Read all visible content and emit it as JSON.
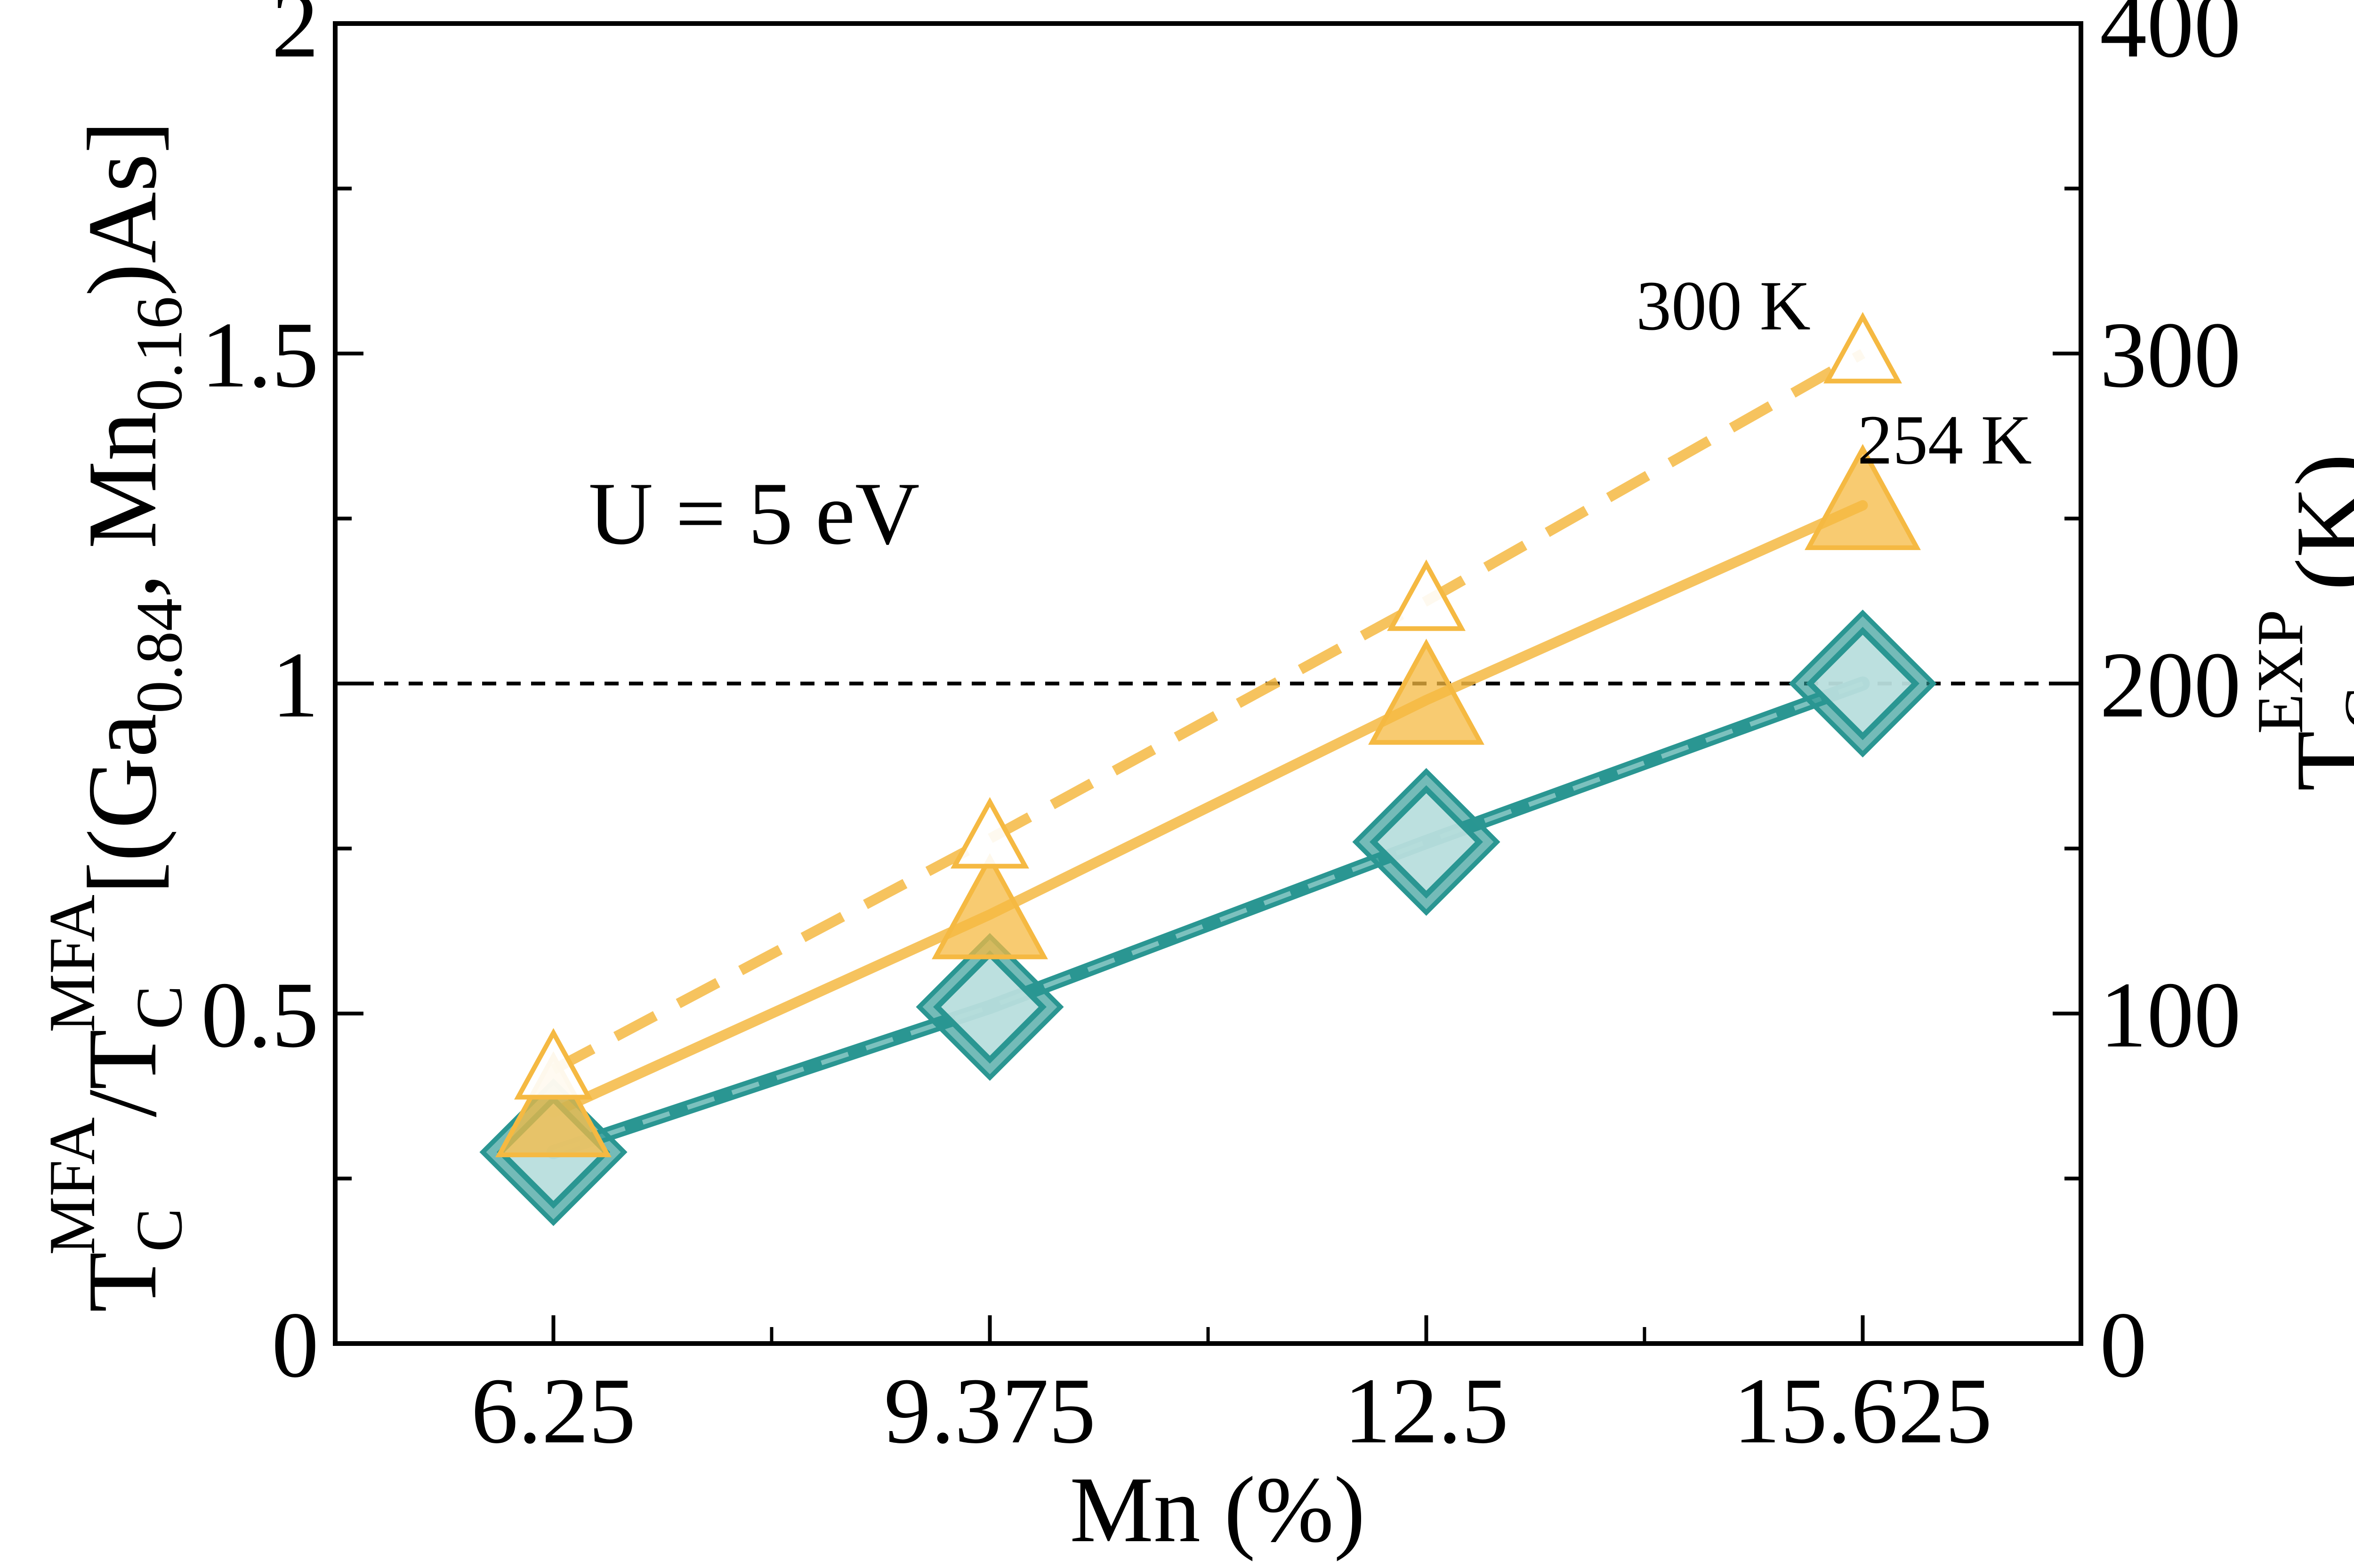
{
  "chart_data": {
    "type": "line",
    "x": [
      6.25,
      9.375,
      12.5,
      15.625
    ],
    "categories": [
      "6.25",
      "9.375",
      "12.5",
      "15.625"
    ],
    "xlim": [
      4.6875,
      17.1875
    ],
    "ylim": [
      0,
      2
    ],
    "y2lim": [
      0,
      400
    ],
    "yticks": [
      "0",
      "0.5",
      "1",
      "1.5",
      "2"
    ],
    "y2ticks": [
      "0",
      "100",
      "200",
      "300",
      "400"
    ],
    "xlabel": "Mn (%)",
    "ylabel": {
      "pre": "T",
      "sub1": "C",
      "sup1": "MFA",
      "mid": "/T",
      "sub2": "C",
      "sup2": "MFA",
      "b1": "[(Ga",
      "sub3": "0.84",
      "b2": ", Mn",
      "sub4": "0.16",
      "b3": ")As]"
    },
    "y2label": {
      "pre": "T",
      "sub": "C",
      "sup": "EXP",
      "post": "(K)"
    },
    "reference_line": {
      "y": 1,
      "style": "dashed"
    },
    "series": [
      {
        "axis": "left",
        "marker": "diamond",
        "line": "solid",
        "values": [
          0.29,
          0.51,
          0.76,
          1.0
        ],
        "color": "#2a9692"
      },
      {
        "axis": "right",
        "marker": "triangle-filled",
        "line": "solid",
        "values": [
          70,
          130,
          195,
          254
        ],
        "color": "#f5b942"
      },
      {
        "axis": "right",
        "marker": "triangle-open",
        "line": "dashed",
        "values": [
          83,
          153,
          225,
          300
        ],
        "color": "#f5b942"
      }
    ],
    "annotations": [
      {
        "text": "U = 5 eV"
      },
      {
        "text": "300 K"
      },
      {
        "text": "254 K"
      }
    ],
    "grid": false,
    "legend": "none"
  }
}
